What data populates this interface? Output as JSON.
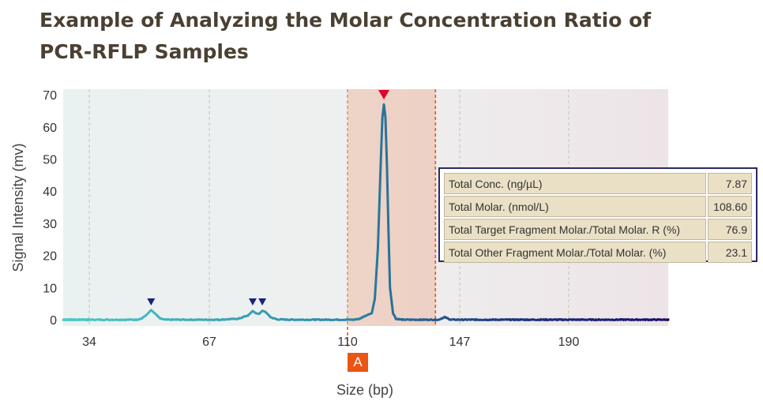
{
  "title_lines": [
    "Example of Analyzing the Molar Concentration Ratio of",
    "PCR-RFLP Samples"
  ],
  "chart_data": {
    "type": "line",
    "title": "Example of Analyzing the Molar Concentration Ratio of PCR-RFLP Samples",
    "xlabel": "Size (bp)",
    "ylabel": "Signal Intensity (mv)",
    "xlim": [
      10,
      225
    ],
    "ylim": [
      -5,
      72
    ],
    "x_ticks": [
      34,
      67,
      110,
      147,
      190
    ],
    "y_ticks": [
      0,
      10,
      20,
      30,
      40,
      50,
      60,
      70
    ],
    "grid_x": true,
    "grid_y": false,
    "series": [
      {
        "x": [
          10,
          30,
          47,
          48.5,
          50,
          51,
          52,
          53.5,
          55,
          58,
          70,
          76,
          79,
          80.5,
          81.5,
          82.5,
          83.5,
          84.5,
          86,
          88,
          92,
          100,
          112,
          114,
          116,
          118,
          119,
          120,
          121,
          121.5,
          122,
          122.5,
          123,
          123.5,
          124,
          125,
          126,
          128,
          134,
          140,
          142,
          144,
          160,
          190,
          225
        ],
        "y": [
          0,
          0,
          0,
          0.4,
          1.8,
          3.0,
          2.0,
          0.3,
          0,
          0,
          0,
          0.3,
          1.3,
          2.7,
          2.0,
          1.8,
          2.8,
          2.4,
          0.8,
          0.1,
          0,
          0,
          0,
          0.3,
          1.3,
          2.0,
          6.5,
          22,
          50,
          63,
          67,
          63,
          48,
          28,
          10,
          2,
          0.3,
          0,
          0,
          0,
          0.8,
          0,
          0,
          0,
          0
        ]
      }
    ],
    "peak_markers": [
      {
        "x": 51,
        "color": "#1a237e"
      },
      {
        "x": 80.5,
        "color": "#1a237e"
      },
      {
        "x": 83.5,
        "color": "#1a237e"
      },
      {
        "x": 122,
        "color": "#e0002b"
      }
    ],
    "highlight_region": {
      "label": "A",
      "x_start": 110,
      "x_end": 139,
      "color": "#ea5513"
    },
    "gradient_colors": [
      "#4ec9c7",
      "#2e8ca8",
      "#1d3a7a",
      "#1a0f6b"
    ],
    "info_table": [
      {
        "label": "Total Conc. (ng/µL)",
        "value": "7.87"
      },
      {
        "label": "Total Molar. (nmol/L)",
        "value": "108.60"
      },
      {
        "label": "Total Target Fragment Molar./Total Molar. R (%)",
        "value": "76.9"
      },
      {
        "label": "Total Other Fragment Molar./Total Molar. (%)",
        "value": "23.1"
      }
    ]
  }
}
